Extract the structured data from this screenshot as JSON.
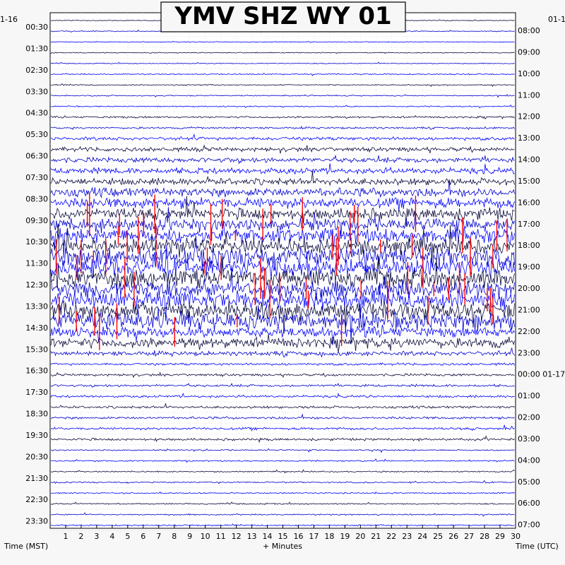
{
  "chart_data": {
    "type": "line",
    "title": "YMV SHZ WY 01",
    "xlabel": "+ Minutes",
    "ylabel_left": "Time (MST)",
    "ylabel_right": "Time (UTC)",
    "date_left_top": "1-16",
    "date_right_top": "01-1",
    "date_right_mid": "01-17",
    "x_ticks": [
      "1",
      "2",
      "3",
      "4",
      "5",
      "6",
      "7",
      "8",
      "9",
      "10",
      "11",
      "12",
      "13",
      "14",
      "15",
      "16",
      "17",
      "18",
      "19",
      "20",
      "21",
      "22",
      "23",
      "24",
      "25",
      "26",
      "27",
      "28",
      "29",
      "30"
    ],
    "xlim": [
      0,
      30
    ],
    "left_times": [
      "00:30",
      "01:30",
      "02:30",
      "03:30",
      "04:30",
      "05:30",
      "06:30",
      "07:30",
      "08:30",
      "09:30",
      "10:30",
      "11:30",
      "12:30",
      "13:30",
      "14:30",
      "15:30",
      "16:30",
      "17:30",
      "18:30",
      "19:30",
      "20:30",
      "21:30",
      "22:30",
      "23:30"
    ],
    "right_times": [
      "08:00",
      "09:00",
      "10:00",
      "11:00",
      "12:00",
      "13:00",
      "14:00",
      "15:00",
      "16:00",
      "17:00",
      "18:00",
      "19:00",
      "20:00",
      "21:00",
      "22:00",
      "23:00",
      "00:00",
      "01:00",
      "02:00",
      "03:00",
      "04:00",
      "05:00",
      "06:00",
      "07:00"
    ],
    "trace_colors": [
      "#0a0a3c",
      "#0000cd",
      "#0000ff"
    ],
    "clip_color": "#ff0000",
    "grid": true
  }
}
